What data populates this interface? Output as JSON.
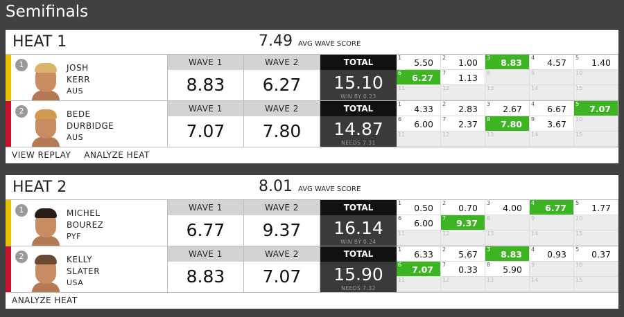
{
  "title": "Semifinals",
  "columns": {
    "wave1": "WAVE 1",
    "wave2": "WAVE 2",
    "total": "TOTAL"
  },
  "avg_label": "AVG WAVE SCORE",
  "heats": [
    {
      "name": "HEAT 1",
      "avg": "7.49",
      "links": [
        "VIEW REPLAY",
        "ANALYZE HEAT"
      ],
      "surfers": [
        {
          "rank": "1",
          "first": "JOSH",
          "last": "KERR",
          "country": "AUS",
          "wave1": "8.83",
          "wave2": "6.27",
          "total": "15.10",
          "note": "WIN BY 0.23",
          "waves": [
            {
              "num": "1",
              "score": "5.50"
            },
            {
              "num": "2",
              "score": "1.00"
            },
            {
              "num": "3",
              "score": "8.83",
              "best": true
            },
            {
              "num": "4",
              "score": "4.57"
            },
            {
              "num": "5",
              "score": "1.40"
            },
            {
              "num": "6",
              "score": "6.27",
              "best": true
            },
            {
              "num": "7",
              "score": "1.13"
            },
            {
              "num": "8"
            },
            {
              "num": "9"
            },
            {
              "num": "10"
            },
            {
              "num": "11"
            },
            {
              "num": "12"
            },
            {
              "num": "13"
            },
            {
              "num": "14"
            },
            {
              "num": "15"
            }
          ]
        },
        {
          "rank": "2",
          "first": "BEDE",
          "last": "DURBIDGE",
          "country": "AUS",
          "wave1": "7.07",
          "wave2": "7.80",
          "total": "14.87",
          "note": "NEEDS 7.31",
          "waves": [
            {
              "num": "1",
              "score": "4.33"
            },
            {
              "num": "2",
              "score": "2.83"
            },
            {
              "num": "3",
              "score": "2.67"
            },
            {
              "num": "4",
              "score": "6.67"
            },
            {
              "num": "5",
              "score": "7.07",
              "best": true
            },
            {
              "num": "6",
              "score": "6.00"
            },
            {
              "num": "7",
              "score": "2.37"
            },
            {
              "num": "8",
              "score": "7.80",
              "best": true
            },
            {
              "num": "9",
              "score": "3.67"
            },
            {
              "num": "10"
            },
            {
              "num": "11"
            },
            {
              "num": "12"
            },
            {
              "num": "13"
            },
            {
              "num": "14"
            },
            {
              "num": "15"
            }
          ]
        }
      ]
    },
    {
      "name": "HEAT 2",
      "avg": "8.01",
      "links": [
        "ANALYZE HEAT"
      ],
      "surfers": [
        {
          "rank": "1",
          "first": "MICHEL",
          "last": "BOUREZ",
          "country": "PYF",
          "wave1": "6.77",
          "wave2": "9.37",
          "total": "16.14",
          "note": "WIN BY 0.24",
          "waves": [
            {
              "num": "1",
              "score": "0.50"
            },
            {
              "num": "2",
              "score": "0.70"
            },
            {
              "num": "3",
              "score": "4.00"
            },
            {
              "num": "4",
              "score": "6.77",
              "best": true
            },
            {
              "num": "5",
              "score": "1.77"
            },
            {
              "num": "6",
              "score": "6.00"
            },
            {
              "num": "7",
              "score": "9.37",
              "best": true
            },
            {
              "num": "8"
            },
            {
              "num": "9"
            },
            {
              "num": "10"
            },
            {
              "num": "11"
            },
            {
              "num": "12"
            },
            {
              "num": "13"
            },
            {
              "num": "14"
            },
            {
              "num": "15"
            }
          ]
        },
        {
          "rank": "2",
          "first": "KELLY",
          "last": "SLATER",
          "country": "USA",
          "wave1": "8.83",
          "wave2": "7.07",
          "total": "15.90",
          "note": "NEEDS 7.32",
          "waves": [
            {
              "num": "1",
              "score": "6.33"
            },
            {
              "num": "2",
              "score": "5.67"
            },
            {
              "num": "3",
              "score": "8.83",
              "best": true
            },
            {
              "num": "4",
              "score": "0.93"
            },
            {
              "num": "5",
              "score": "0.37"
            },
            {
              "num": "6",
              "score": "7.07",
              "best": true
            },
            {
              "num": "7",
              "score": "0.33"
            },
            {
              "num": "8",
              "score": "5.90"
            },
            {
              "num": "9"
            },
            {
              "num": "10"
            },
            {
              "num": "11"
            },
            {
              "num": "12"
            },
            {
              "num": "13"
            },
            {
              "num": "14"
            },
            {
              "num": "15"
            }
          ]
        }
      ]
    }
  ]
}
